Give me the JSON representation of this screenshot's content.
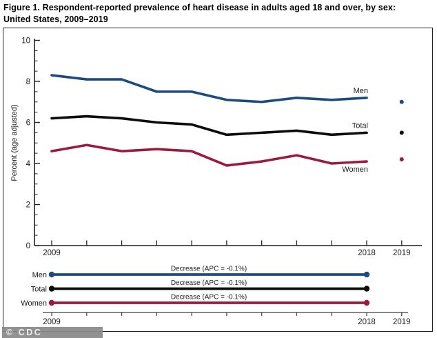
{
  "figure": {
    "title": "Figure 1. Respondent-reported prevalence of heart disease in adults aged 18 and over, by sex: United States, 2009–2019",
    "watermark": "© CDC"
  },
  "colors": {
    "men": "#1b4b7f",
    "total": "#0c0c0c",
    "women": "#9c1b3c",
    "axis": "#231f20",
    "bottom_axis": "#3d3d3d",
    "badge_bg": "#8a8a8a",
    "badge_text": "#f0f0f0"
  },
  "chart_data": {
    "type": "line",
    "title": "Figure 1. Respondent-reported prevalence of heart disease in adults aged 18 and over, by sex: United States, 2009–2019",
    "xlabel": "",
    "ylabel": "Percent (age adjusted)",
    "ylim": [
      0,
      10
    ],
    "yticks": [
      0,
      2,
      4,
      6,
      8,
      10
    ],
    "y_minor_tick_step": 0.5,
    "grid": false,
    "legend_position": "inline-right-of-lines",
    "x": [
      2009,
      2010,
      2011,
      2012,
      2013,
      2014,
      2015,
      2016,
      2017,
      2018
    ],
    "extra_point_year": 2019,
    "x_tick_years": [
      2009,
      2010,
      2011,
      2012,
      2013,
      2014,
      2015,
      2016,
      2017,
      2018,
      2019
    ],
    "x_tick_labels_shown": [
      "2009",
      "2018",
      "2019"
    ],
    "series": [
      {
        "name": "Men",
        "color": "#1b4b7f",
        "values": [
          8.3,
          8.1,
          8.1,
          7.5,
          7.5,
          7.1,
          7.0,
          7.2,
          7.1,
          7.2
        ],
        "value_2019": 7.0,
        "trend_label": "Decrease (APC = -0.1%)"
      },
      {
        "name": "Total",
        "color": "#0c0c0c",
        "values": [
          6.2,
          6.3,
          6.2,
          6.0,
          5.9,
          5.4,
          5.5,
          5.6,
          5.4,
          5.5
        ],
        "value_2019": 5.5,
        "trend_label": "Decrease (APC = -0.1%)"
      },
      {
        "name": "Women",
        "color": "#9c1b3c",
        "values": [
          4.6,
          4.9,
          4.6,
          4.7,
          4.6,
          3.9,
          4.1,
          4.4,
          4.0,
          4.1
        ],
        "value_2019": 4.2,
        "trend_label": "Decrease (APC = -0.1%)"
      }
    ]
  }
}
